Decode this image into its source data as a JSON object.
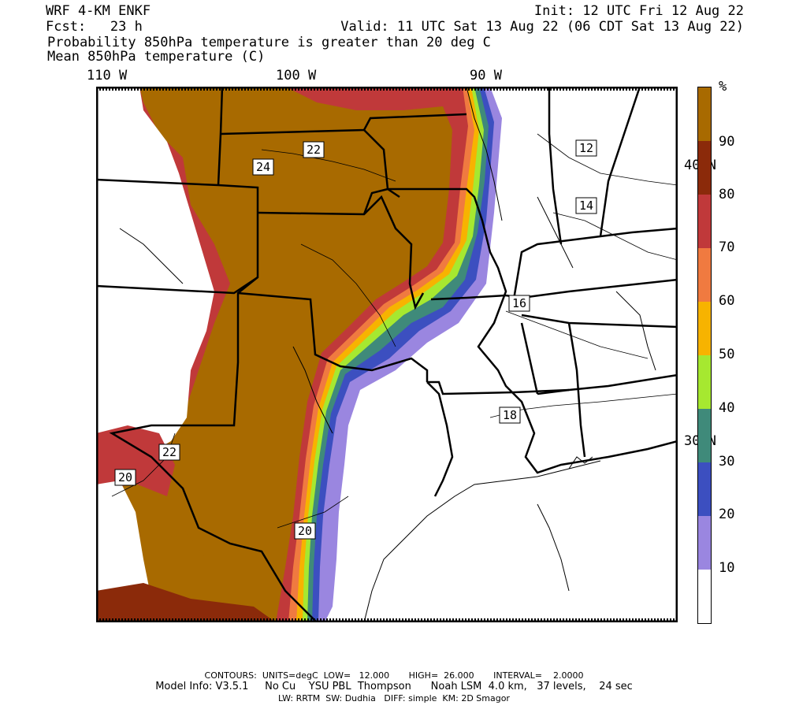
{
  "header": {
    "model": "WRF 4-KM ENKF",
    "init": "Init: 12 UTC Fri 12 Aug 22",
    "fcst": "Fcst:   23 h",
    "valid": "Valid: 11 UTC Sat 13 Aug 22 (06 CDT Sat 13 Aug 22)",
    "field1": "Probability 850hPa temperature is greater than 20 deg C",
    "field2": "Mean 850hPa temperature (C)"
  },
  "longitudes": [
    "110 W",
    "100 W",
    "90 W"
  ],
  "latitudes": [
    "40 N",
    "30 N"
  ],
  "contour_labels": [
    "22",
    "24",
    "12",
    "14",
    "16",
    "18",
    "22",
    "20",
    "20"
  ],
  "colorbar": {
    "unit": "%",
    "ticks": [
      "90",
      "80",
      "70",
      "60",
      "50",
      "40",
      "30",
      "20",
      "10"
    ],
    "colors": [
      "#a86a00",
      "#8b2a0a",
      "#c0393a",
      "#f07a40",
      "#f7b300",
      "#a6e830",
      "#3f8a7a",
      "#3c4fc0",
      "#9a86e0",
      "#ffffff"
    ]
  },
  "footer": {
    "line1": "CONTOURS:  UNITS=degC  LOW=   12.000       HIGH=  26.000       INTERVAL=    2.0000",
    "line2": "Model Info: V3.5.1     No Cu    YSU PBL  Thompson      Noah LSM  4.0 km,   37 levels,    24 sec",
    "line3": "LW: RRTM  SW: Dudhia   DIFF: simple  KM: 2D Smagor"
  }
}
